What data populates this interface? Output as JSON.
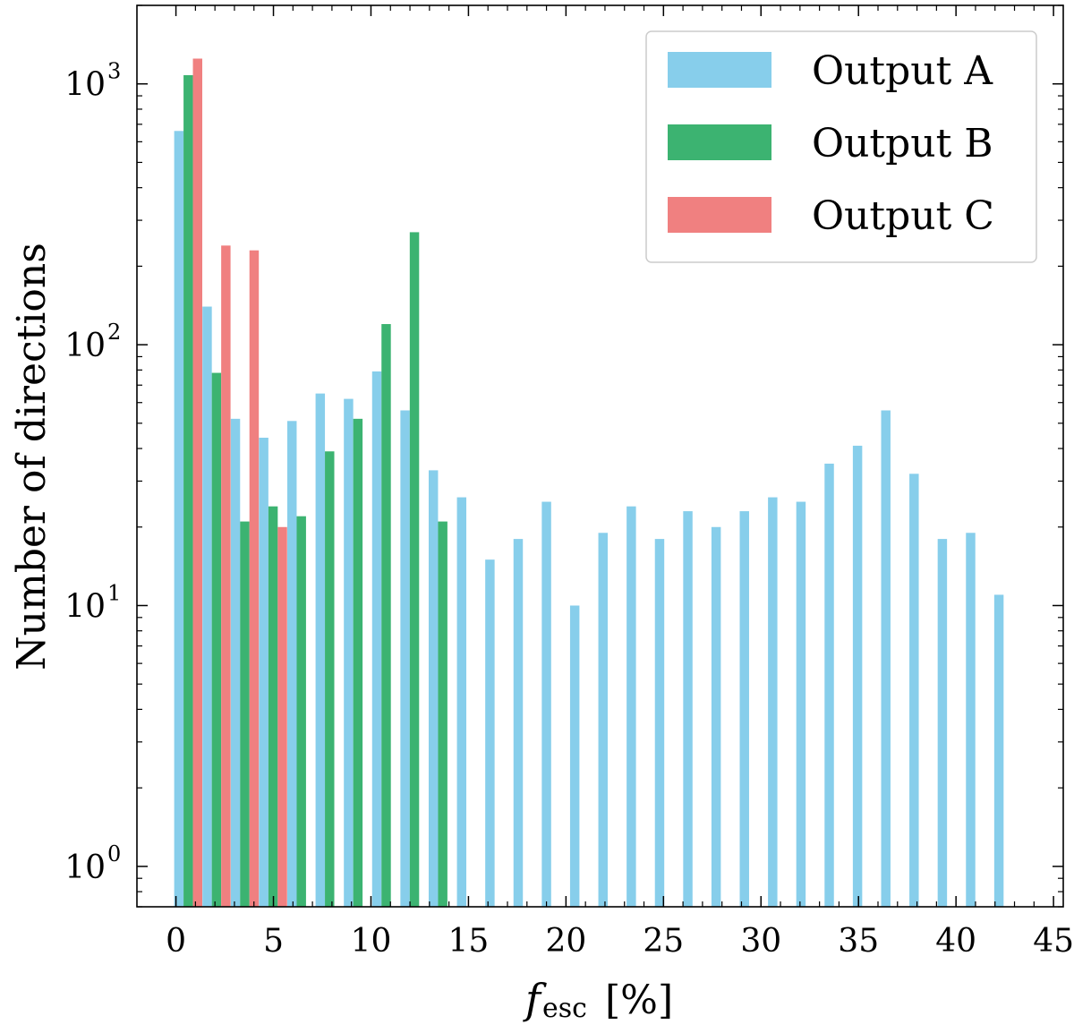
{
  "chart_data": {
    "type": "bar",
    "title": "",
    "xlabel": "f",
    "xlabel_sub": "esc",
    "xlabel_unit": "[%]",
    "ylabel": "Number of directions",
    "yscale": "log",
    "xlim": [
      -2,
      45.5
    ],
    "ylim": [
      0.7,
      2000
    ],
    "xticks": [
      "0",
      "5",
      "10",
      "15",
      "20",
      "25",
      "30",
      "35",
      "40",
      "45"
    ],
    "yticks": [
      {
        "base": "10",
        "exp": "0"
      },
      {
        "base": "10",
        "exp": "1"
      },
      {
        "base": "10",
        "exp": "2"
      },
      {
        "base": "10",
        "exp": "3"
      }
    ],
    "legend_position": "top-right",
    "series": [
      {
        "name": "Output A",
        "color": "#87ceeb",
        "x": [
          0.15,
          1.6,
          3.05,
          4.5,
          5.95,
          7.4,
          8.85,
          10.3,
          11.75,
          13.2,
          14.65,
          16.1,
          17.55,
          19.0,
          20.45,
          21.9,
          23.35,
          24.8,
          26.25,
          27.7,
          29.15,
          30.6,
          32.05,
          33.5,
          34.95,
          36.4,
          37.85,
          39.3,
          40.75,
          42.2
        ],
        "values": [
          660,
          140,
          52,
          44,
          51,
          65,
          62,
          79,
          56,
          33,
          26,
          15,
          18,
          25,
          10,
          19,
          24,
          18,
          23,
          20,
          23,
          26,
          25,
          35,
          41,
          56,
          32,
          18,
          19,
          11
        ]
      },
      {
        "name": "Output B",
        "color": "#3cb371",
        "x": [
          0.63,
          2.08,
          3.53,
          4.98,
          6.43,
          7.88,
          9.33,
          10.78,
          12.23,
          13.68
        ],
        "values": [
          1080,
          78,
          21,
          24,
          22,
          39,
          52,
          120,
          270,
          21
        ]
      },
      {
        "name": "Output C",
        "color": "#f08080",
        "x": [
          1.11,
          2.56,
          4.01,
          5.46
        ],
        "values": [
          1250,
          240,
          230,
          20
        ]
      }
    ]
  }
}
